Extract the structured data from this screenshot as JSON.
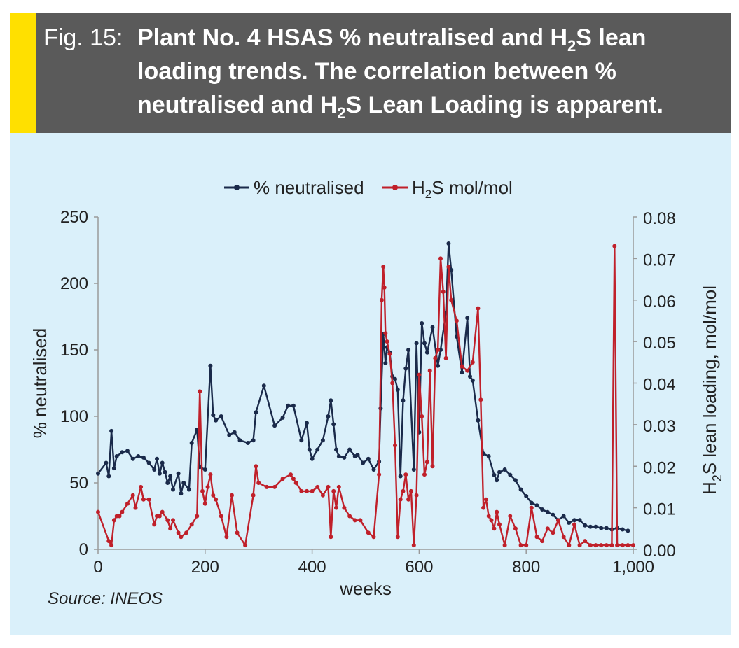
{
  "caption": {
    "prefix": "Fig. 15:",
    "title_part1": "Plant No. 4 HSAS % neutralised and H",
    "title_sub1": "2",
    "title_part2": "S lean loading trends. The correlation between % neutralised and H",
    "title_sub2": "2",
    "title_part3": "S Lean Loading is apparent."
  },
  "source": "Source: INEOS",
  "colors": {
    "neutralised": "#1a2a4a",
    "h2s": "#c0202a",
    "accent": "#ffe000",
    "panel": "#daf0fa",
    "caption_bg": "#5a5a5a"
  },
  "chart_data": {
    "type": "line",
    "xlabel": "weeks",
    "ylabel_left": "% neutralised",
    "ylabel_right_pre": "H",
    "ylabel_right_sub": "2",
    "ylabel_right_post": "S lean loading, mol/mol",
    "xlim": [
      0,
      1000
    ],
    "ylim_left": [
      0,
      250
    ],
    "ylim_right": [
      0,
      0.08
    ],
    "x_ticks": [
      0,
      200,
      400,
      600,
      800,
      1000
    ],
    "x_tick_labels": [
      "0",
      "200",
      "400",
      "600",
      "800",
      "1,000"
    ],
    "y_left_ticks": [
      0,
      50,
      100,
      150,
      200,
      250
    ],
    "y_left_tick_labels": [
      "0",
      "50",
      "100",
      "150",
      "200",
      "250"
    ],
    "y_right_ticks": [
      0,
      0.01,
      0.02,
      0.03,
      0.04,
      0.05,
      0.06,
      0.07,
      0.08
    ],
    "y_right_tick_labels": [
      "0.00",
      "0.01",
      "0.02",
      "0.03",
      "0.04",
      "0.05",
      "0.06",
      "0.07",
      "0.08"
    ],
    "legend": {
      "placement": "top",
      "entries": [
        "% neutralised",
        "H2S mol/mol"
      ]
    },
    "series": [
      {
        "name": "% neutralised",
        "axis": "left",
        "x": [
          0,
          15,
          20,
          25,
          30,
          35,
          45,
          55,
          65,
          75,
          85,
          95,
          105,
          110,
          115,
          120,
          125,
          130,
          135,
          140,
          150,
          155,
          160,
          170,
          175,
          185,
          190,
          200,
          210,
          215,
          220,
          230,
          245,
          255,
          265,
          280,
          290,
          295,
          310,
          330,
          345,
          355,
          365,
          380,
          390,
          395,
          400,
          410,
          420,
          430,
          435,
          440,
          445,
          450,
          460,
          470,
          480,
          485,
          495,
          505,
          515,
          525,
          528,
          533,
          537,
          540,
          545,
          550,
          555,
          560,
          565,
          570,
          575,
          580,
          590,
          595,
          600,
          605,
          610,
          615,
          625,
          635,
          640,
          650,
          655,
          660,
          670,
          680,
          690,
          695,
          700,
          710,
          720,
          730,
          740,
          745,
          750,
          760,
          770,
          780,
          790,
          800,
          810,
          820,
          830,
          840,
          850,
          860,
          870,
          880,
          890,
          900,
          910,
          920,
          930,
          940,
          950,
          960,
          970,
          980,
          990
        ],
        "y": [
          57,
          65,
          55,
          89,
          61,
          70,
          73,
          74,
          68,
          70,
          69,
          65,
          60,
          68,
          57,
          65,
          58,
          50,
          55,
          45,
          57,
          42,
          50,
          45,
          80,
          90,
          62,
          60,
          138,
          101,
          97,
          100,
          86,
          88,
          82,
          80,
          82,
          103,
          123,
          93,
          99,
          108,
          108,
          82,
          95,
          75,
          68,
          75,
          82,
          100,
          112,
          94,
          75,
          70,
          69,
          75,
          70,
          71,
          65,
          68,
          60,
          66,
          106,
          162,
          140,
          152,
          148,
          130,
          128,
          120,
          55,
          112,
          136,
          150,
          60,
          155,
          88,
          170,
          155,
          148,
          167,
          138,
          150,
          178,
          230,
          210,
          160,
          133,
          174,
          130,
          127,
          97,
          72,
          70,
          56,
          52,
          58,
          60,
          56,
          52,
          45,
          40,
          35,
          33,
          30,
          28,
          26,
          22,
          25,
          20,
          22,
          22,
          18,
          17,
          17,
          16,
          16,
          15,
          16,
          15,
          14
        ]
      },
      {
        "name": "H2S mol/mol",
        "axis": "right",
        "x": [
          0,
          20,
          25,
          30,
          35,
          40,
          45,
          55,
          65,
          70,
          80,
          85,
          95,
          105,
          110,
          115,
          120,
          130,
          135,
          140,
          150,
          155,
          165,
          175,
          185,
          190,
          195,
          200,
          205,
          210,
          215,
          220,
          230,
          240,
          250,
          260,
          275,
          290,
          295,
          300,
          315,
          330,
          345,
          360,
          365,
          370,
          380,
          390,
          400,
          410,
          420,
          430,
          435,
          440,
          445,
          450,
          460,
          470,
          480,
          490,
          505,
          515,
          525,
          530,
          533,
          535,
          537,
          540,
          545,
          550,
          555,
          560,
          565,
          570,
          575,
          580,
          585,
          590,
          595,
          600,
          605,
          610,
          615,
          620,
          625,
          630,
          635,
          640,
          645,
          650,
          655,
          660,
          670,
          680,
          690,
          700,
          710,
          715,
          720,
          725,
          730,
          735,
          740,
          745,
          750,
          760,
          770,
          780,
          790,
          800,
          810,
          820,
          830,
          840,
          850,
          860,
          870,
          880,
          890,
          900,
          910,
          920,
          930,
          940,
          950,
          960,
          965,
          970,
          980,
          990,
          1000
        ],
        "y": [
          0.009,
          0.002,
          0.001,
          0.007,
          0.008,
          0.008,
          0.009,
          0.011,
          0.013,
          0.01,
          0.015,
          0.012,
          0.012,
          0.006,
          0.008,
          0.008,
          0.009,
          0.007,
          0.005,
          0.007,
          0.004,
          0.003,
          0.004,
          0.006,
          0.008,
          0.038,
          0.014,
          0.011,
          0.015,
          0.018,
          0.013,
          0.012,
          0.008,
          0.003,
          0.013,
          0.004,
          0.001,
          0.013,
          0.02,
          0.016,
          0.015,
          0.015,
          0.017,
          0.018,
          0.017,
          0.016,
          0.014,
          0.014,
          0.014,
          0.015,
          0.013,
          0.015,
          0.003,
          0.014,
          0.01,
          0.015,
          0.01,
          0.008,
          0.007,
          0.007,
          0.004,
          0.003,
          0.018,
          0.06,
          0.068,
          0.063,
          0.052,
          0.05,
          0.047,
          0.04,
          0.025,
          0.003,
          0.012,
          0.014,
          0.018,
          0.012,
          0.014,
          0.001,
          0.013,
          0.042,
          0.032,
          0.018,
          0.021,
          0.043,
          0.02,
          0.046,
          0.048,
          0.07,
          0.062,
          0.046,
          0.068,
          0.06,
          0.055,
          0.044,
          0.043,
          0.045,
          0.058,
          0.036,
          0.01,
          0.012,
          0.008,
          0.007,
          0.005,
          0.009,
          0.006,
          0.001,
          0.008,
          0.005,
          0.001,
          0.001,
          0.01,
          0.003,
          0.002,
          0.005,
          0.004,
          0.007,
          0.003,
          0.001,
          0.006,
          0.001,
          0.002,
          0.001,
          0.001,
          0.001,
          0.001,
          0.001,
          0.073,
          0.001,
          0.001,
          0.001,
          0.001
        ]
      }
    ]
  }
}
